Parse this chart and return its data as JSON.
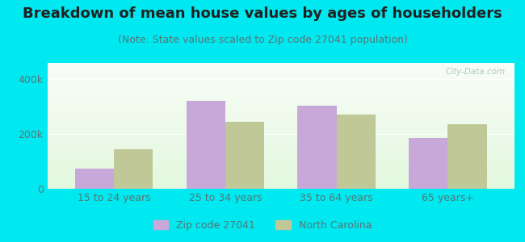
{
  "title": "Breakdown of mean house values by ages of householders",
  "subtitle": "(Note: State values scaled to Zip code 27041 population)",
  "categories": [
    "15 to 24 years",
    "25 to 34 years",
    "35 to 64 years",
    "65 years+"
  ],
  "zip_values": [
    75000,
    320000,
    305000,
    185000
  ],
  "nc_values": [
    145000,
    245000,
    270000,
    235000
  ],
  "zip_color": "#c8a8d8",
  "nc_color": "#c0c898",
  "background_outer": "#00e8f0",
  "ylim": [
    0,
    460000
  ],
  "ytick_labels": [
    "0",
    "200k",
    "400k"
  ],
  "ytick_vals": [
    0,
    200000,
    400000
  ],
  "legend_labels": [
    "Zip code 27041",
    "North Carolina"
  ],
  "bar_width": 0.35,
  "title_fontsize": 13,
  "subtitle_fontsize": 9,
  "tick_fontsize": 9,
  "legend_fontsize": 9,
  "title_color": "#222222",
  "subtitle_color": "#557777",
  "tick_color": "#557777",
  "watermark": "City-Data.com"
}
